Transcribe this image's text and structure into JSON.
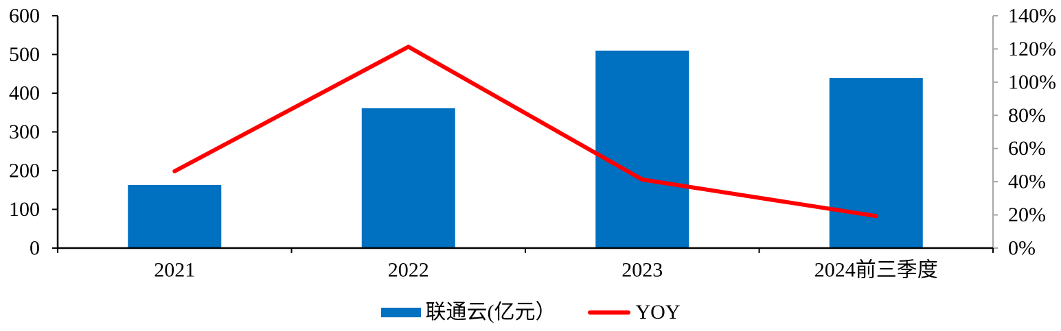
{
  "chart_data": {
    "type": "combo-bar-line",
    "categories": [
      "2021",
      "2022",
      "2023",
      "2024前三季度"
    ],
    "series": [
      {
        "name": "联通云(亿元）",
        "type": "bar",
        "axis": "left",
        "color": "#0070C0",
        "values": [
          163,
          361,
          510,
          439
        ]
      },
      {
        "name": "YOY",
        "type": "line",
        "axis": "right",
        "color": "#FF0000",
        "unit": "%",
        "values": [
          46.3,
          121.3,
          41.3,
          19.3
        ]
      }
    ],
    "left_axis": {
      "min": 0,
      "max": 600,
      "step": 100,
      "tick_labels": [
        "600",
        "500",
        "400",
        "300",
        "200",
        "100",
        "0"
      ]
    },
    "right_axis": {
      "min": 0,
      "max": 140,
      "step": 20,
      "tick_labels": [
        "140%",
        "120%",
        "100%",
        "80%",
        "60%",
        "40%",
        "20%",
        "0%"
      ]
    },
    "grid": false,
    "legend_position": "bottom-center",
    "colors": {
      "axis_left": "#000000",
      "axis_bottom": "#000000",
      "axis_right": "#A6A6A6",
      "text": "#000000",
      "background": "#FFFFFF"
    }
  }
}
